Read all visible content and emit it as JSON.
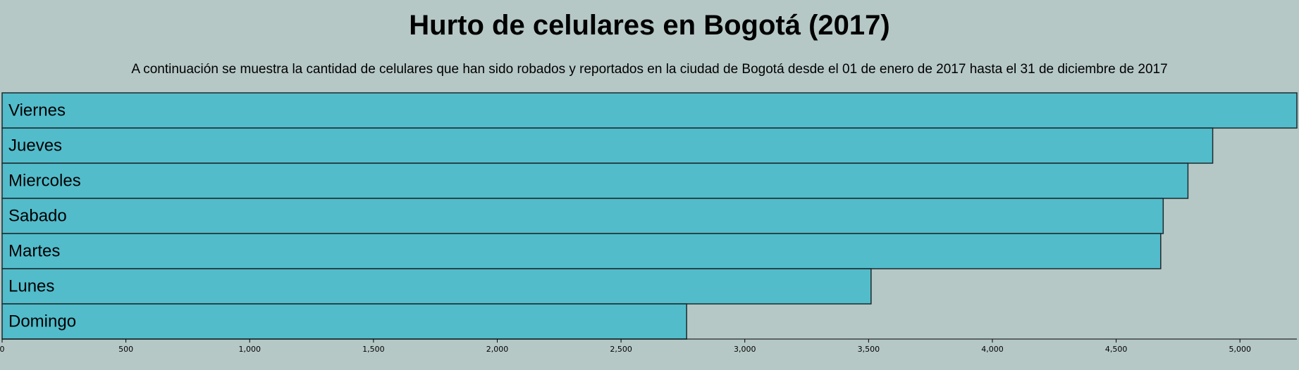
{
  "header": {
    "title": "Hurto de celulares en Bogotá (2017)",
    "subtitle": "A continuación se muestra la cantidad de celulares que han sido robados y reportados en la ciudad de Bogotá desde el 01 de enero de 2017 hasta el 31 de diciembre de 2017"
  },
  "chart_data": {
    "type": "bar",
    "orientation": "horizontal",
    "title": "Hurto de celulares en Bogotá (2017)",
    "subtitle": "A continuación se muestra la cantidad de celulares que han sido robados y reportados en la ciudad de Bogotá desde el 01 de enero de 2017 hasta el 31 de diciembre de 2017",
    "categories": [
      "Viernes",
      "Jueves",
      "Miercoles",
      "Sabado",
      "Martes",
      "Lunes",
      "Domingo"
    ],
    "values": [
      5230,
      4890,
      4790,
      4690,
      4680,
      3510,
      2765
    ],
    "xlim": [
      0,
      5230
    ],
    "xticks": [
      0,
      500,
      1000,
      1500,
      2000,
      2500,
      3000,
      3500,
      4000,
      4500,
      5000
    ],
    "xtick_labels": [
      "0",
      "500",
      "1,000",
      "1,500",
      "2,000",
      "2,500",
      "3,000",
      "3,500",
      "4,000",
      "4,500",
      "5,000"
    ],
    "xlabel": "",
    "ylabel": "",
    "grid": false,
    "legend": "none",
    "colors": {
      "bar_fill": "#52bccb",
      "bar_stroke": "#1c2a2d",
      "background": "#b5c8c6"
    }
  }
}
